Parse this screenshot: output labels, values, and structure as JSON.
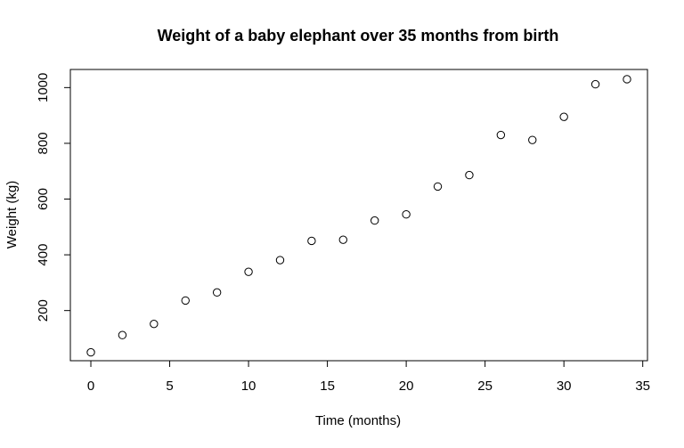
{
  "chart_data": {
    "type": "scatter",
    "title": "Weight of a baby elephant over 35 months from birth",
    "xlabel": "Time (months)",
    "ylabel": "Weight (kg)",
    "xlim": [
      -1.3,
      35.3
    ],
    "ylim": [
      20,
      1065
    ],
    "xticks": [
      0,
      5,
      10,
      15,
      20,
      25,
      30,
      35
    ],
    "yticks": [
      200,
      400,
      600,
      800,
      1000
    ],
    "grid": false,
    "legend": "none",
    "marker": "open-circle",
    "color": "#000000",
    "x": [
      0,
      2,
      4,
      6,
      8,
      10,
      12,
      14,
      16,
      18,
      20,
      22,
      24,
      26,
      28,
      30,
      32,
      34
    ],
    "y": [
      50,
      112,
      152,
      236,
      265,
      339,
      381,
      450,
      454,
      523,
      545,
      645,
      686,
      830,
      812,
      895,
      1012,
      1030
    ]
  }
}
